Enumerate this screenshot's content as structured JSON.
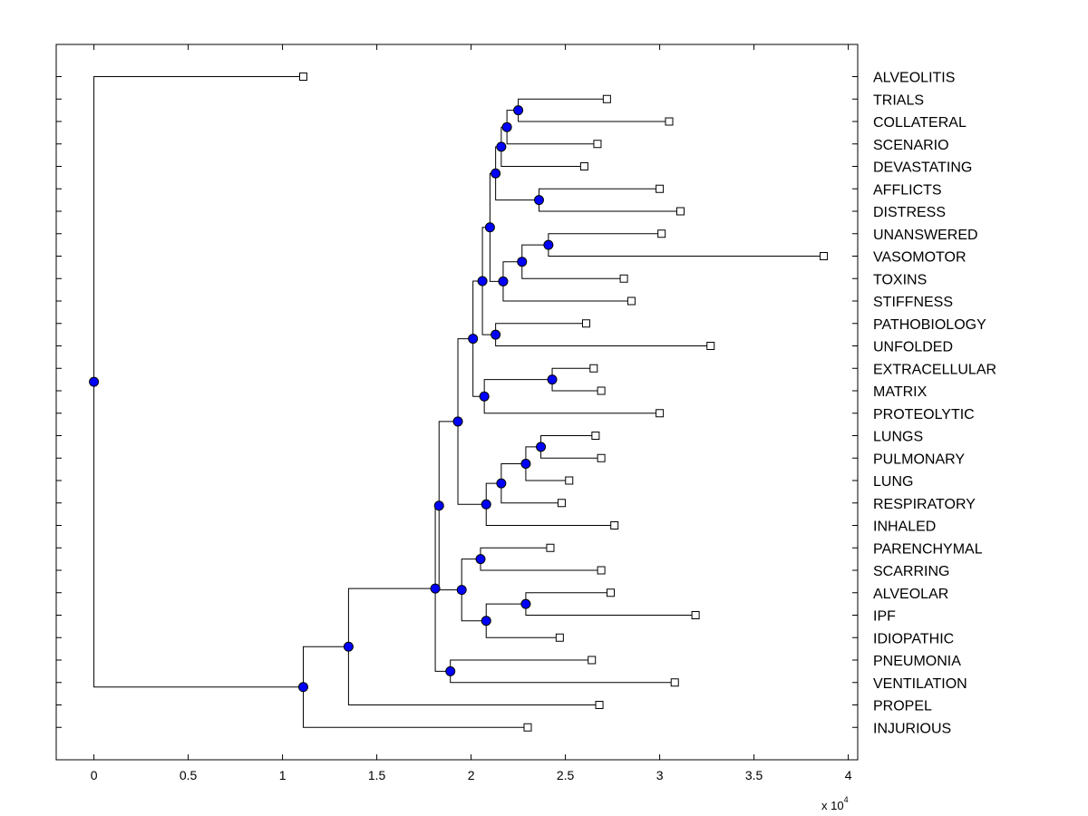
{
  "chart_data": {
    "type": "dendrogram",
    "title": "",
    "xlabel": "",
    "ylabel": "",
    "x_exponent_label": {
      "base": "x 10",
      "power": "4"
    },
    "xlim": [
      -0.2,
      4.05
    ],
    "xticks": [
      0,
      0.5,
      1,
      1.5,
      2,
      2.5,
      3,
      3.5,
      4
    ],
    "xtick_labels": [
      "0",
      "0.5",
      "1",
      "1.5",
      "2",
      "2.5",
      "3",
      "3.5",
      "4"
    ],
    "grid": false,
    "colors": {
      "node": "#0000ff",
      "line": "#000000",
      "leaf": "#ffffff"
    },
    "leaves": [
      {
        "label": "ALVEOLITIS",
        "x": 1.11
      },
      {
        "label": "TRIALS",
        "x": 2.72
      },
      {
        "label": "COLLATERAL",
        "x": 3.05
      },
      {
        "label": "SCENARIO",
        "x": 2.67
      },
      {
        "label": "DEVASTATING",
        "x": 2.6
      },
      {
        "label": "AFFLICTS",
        "x": 3.0
      },
      {
        "label": "DISTRESS",
        "x": 3.11
      },
      {
        "label": "UNANSWERED",
        "x": 3.01
      },
      {
        "label": "VASOMOTOR",
        "x": 3.87
      },
      {
        "label": "TOXINS",
        "x": 2.81
      },
      {
        "label": "STIFFNESS",
        "x": 2.85
      },
      {
        "label": "PATHOBIOLOGY",
        "x": 2.61
      },
      {
        "label": "UNFOLDED",
        "x": 3.27
      },
      {
        "label": "EXTRACELLULAR",
        "x": 2.65
      },
      {
        "label": "MATRIX",
        "x": 2.69
      },
      {
        "label": "PROTEOLYTIC",
        "x": 3.0
      },
      {
        "label": "LUNGS",
        "x": 2.66
      },
      {
        "label": "PULMONARY",
        "x": 2.69
      },
      {
        "label": "LUNG",
        "x": 2.52
      },
      {
        "label": "RESPIRATORY",
        "x": 2.48
      },
      {
        "label": "INHALED",
        "x": 2.76
      },
      {
        "label": "PARENCHYMAL",
        "x": 2.42
      },
      {
        "label": "SCARRING",
        "x": 2.69
      },
      {
        "label": "ALVEOLAR",
        "x": 2.74
      },
      {
        "label": "IPF",
        "x": 3.19
      },
      {
        "label": "IDIOPATHIC",
        "x": 2.47
      },
      {
        "label": "PNEUMONIA",
        "x": 2.64
      },
      {
        "label": "VENTILATION",
        "x": 3.08
      },
      {
        "label": "PROPEL",
        "x": 2.68
      },
      {
        "label": "INJURIOUS",
        "x": 2.3
      }
    ],
    "nodes": [
      {
        "id": "n0",
        "x": 0.0,
        "children": [
          "L0",
          "n25"
        ]
      },
      {
        "id": "n25",
        "x": 1.11,
        "children": [
          "n24",
          "L29"
        ]
      },
      {
        "id": "n24",
        "x": 1.35,
        "children": [
          "n23",
          "L28"
        ]
      },
      {
        "id": "n23",
        "x": 1.81,
        "children": [
          "n21",
          "n22"
        ]
      },
      {
        "id": "n22",
        "x": 1.89,
        "children": [
          "L26",
          "L27"
        ]
      },
      {
        "id": "n21",
        "x": 1.95,
        "children": [
          "n19",
          "n20"
        ]
      },
      {
        "id": "n20",
        "x": 2.08,
        "children": [
          "n18",
          "L25"
        ]
      },
      {
        "id": "n18",
        "x": 2.29,
        "children": [
          "L23",
          "L24"
        ]
      },
      {
        "id": "n19",
        "x": 2.05,
        "children": [
          "L21",
          "L22"
        ]
      },
      {
        "id": "n17",
        "x": 1.83,
        "children": [
          "n16",
          "n23_top"
        ]
      },
      {
        "id": "n16",
        "x": 1.93,
        "children": [
          "n12",
          "n15"
        ]
      },
      {
        "id": "n15",
        "x": 2.08,
        "children": [
          "n14",
          "L20"
        ]
      },
      {
        "id": "n14",
        "x": 2.16,
        "children": [
          "n13",
          "L19"
        ]
      },
      {
        "id": "n13",
        "x": 2.29,
        "children": [
          "n11",
          "L18"
        ]
      },
      {
        "id": "n11",
        "x": 2.37,
        "children": [
          "L16",
          "L17"
        ]
      },
      {
        "id": "n12",
        "x": 2.01,
        "children": [
          "n9",
          "n10"
        ]
      },
      {
        "id": "n10",
        "x": 2.07,
        "children": [
          "n8",
          "L15"
        ]
      },
      {
        "id": "n8",
        "x": 2.43,
        "children": [
          "L13",
          "L14"
        ]
      },
      {
        "id": "n9",
        "x": 2.06,
        "children": [
          "n7",
          "n6"
        ]
      },
      {
        "id": "n7",
        "x": 2.1,
        "children": [
          "n4",
          "n5"
        ]
      },
      {
        "id": "n6",
        "x": 2.13,
        "children": [
          "L11",
          "L12"
        ]
      },
      {
        "id": "n5",
        "x": 2.17,
        "children": [
          "n3",
          "L10"
        ]
      },
      {
        "id": "n3",
        "x": 2.27,
        "children": [
          "n2",
          "L9"
        ]
      },
      {
        "id": "n2",
        "x": 2.41,
        "children": [
          "L7",
          "L8"
        ]
      },
      {
        "id": "n4",
        "x": 2.13,
        "children": [
          "n1",
          "n1b"
        ]
      },
      {
        "id": "n1b",
        "x": 2.36,
        "children": [
          "L5",
          "L6"
        ]
      },
      {
        "id": "n1",
        "x": 2.16,
        "children": [
          "n1a",
          "L4"
        ]
      },
      {
        "id": "n1a",
        "x": 2.19,
        "children": [
          "n1c",
          "L3"
        ]
      },
      {
        "id": "n1c",
        "x": 2.25,
        "children": [
          "L1",
          "L2"
        ]
      }
    ]
  }
}
